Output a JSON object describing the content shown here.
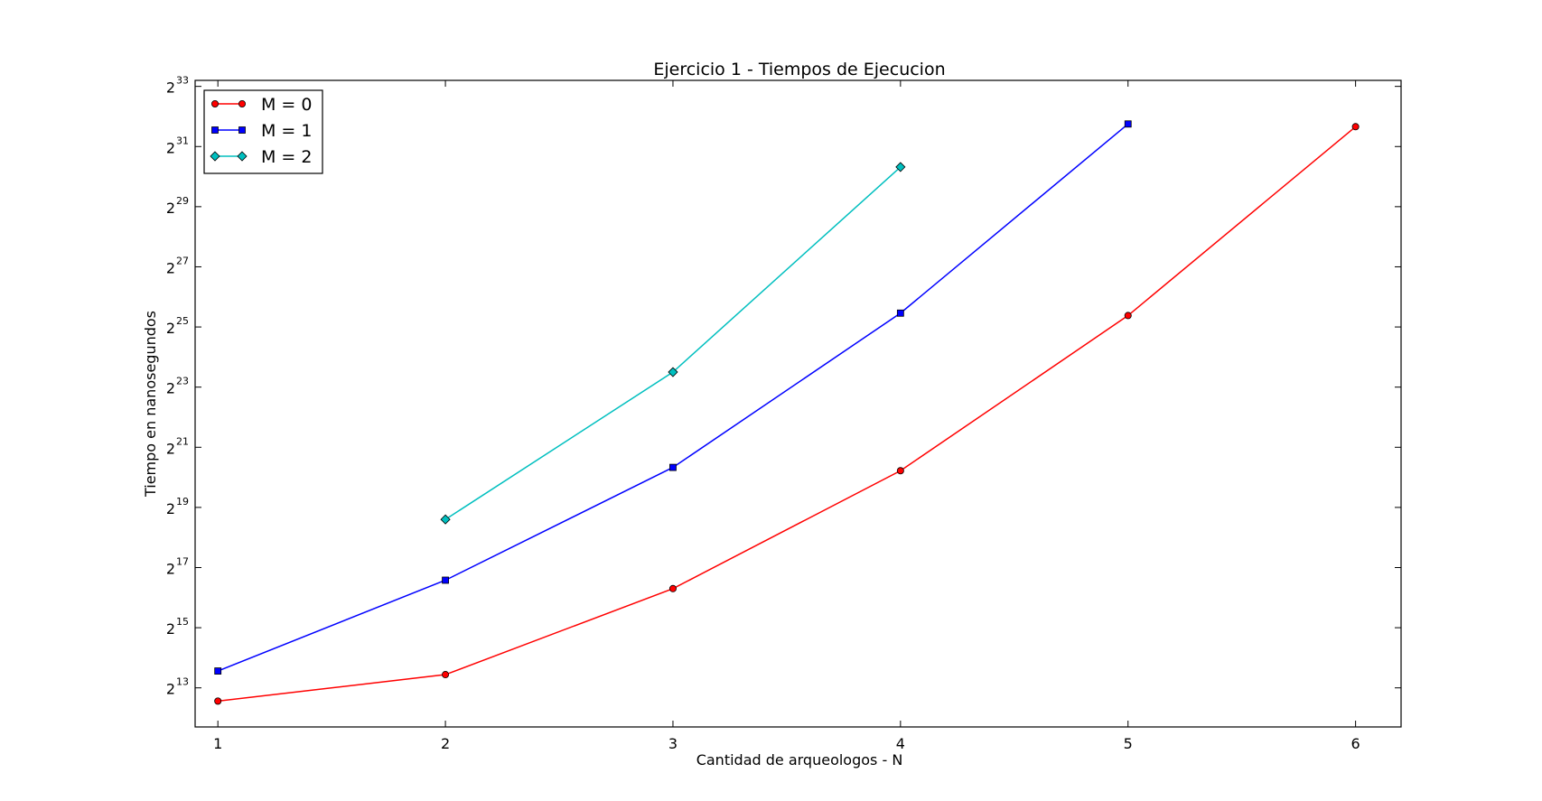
{
  "chart_data": {
    "type": "line",
    "title": "Ejercicio 1 - Tiempos de Ejecucion",
    "xlabel": "Cantidad de arqueologos - N",
    "ylabel": "Tiempo en nanosegundos",
    "y_scale": "log2",
    "xlim": [
      0.9,
      6.2
    ],
    "ylim_exp": [
      11.7,
      33.2
    ],
    "x_ticks": [
      1,
      2,
      3,
      4,
      5,
      6
    ],
    "y_tick_exponents": [
      13,
      15,
      17,
      19,
      21,
      23,
      25,
      27,
      29,
      31,
      33
    ],
    "y_tick_base": "2",
    "grid": false,
    "legend_position": "top-left",
    "series": [
      {
        "name": "M = 0",
        "color": "#ff0000",
        "marker": "circle",
        "x": [
          1,
          2,
          3,
          4,
          5,
          6
        ],
        "y_exp": [
          12.56,
          13.44,
          16.3,
          20.22,
          25.38,
          31.66
        ]
      },
      {
        "name": "M = 1",
        "color": "#0000ff",
        "marker": "square",
        "x": [
          1,
          2,
          3,
          4,
          5
        ],
        "y_exp": [
          13.56,
          16.58,
          20.33,
          25.46,
          31.75
        ]
      },
      {
        "name": "M = 2",
        "color": "#00bfbf",
        "marker": "diamond",
        "x": [
          2,
          3,
          4
        ],
        "y_exp": [
          18.6,
          23.5,
          30.32
        ]
      }
    ]
  }
}
